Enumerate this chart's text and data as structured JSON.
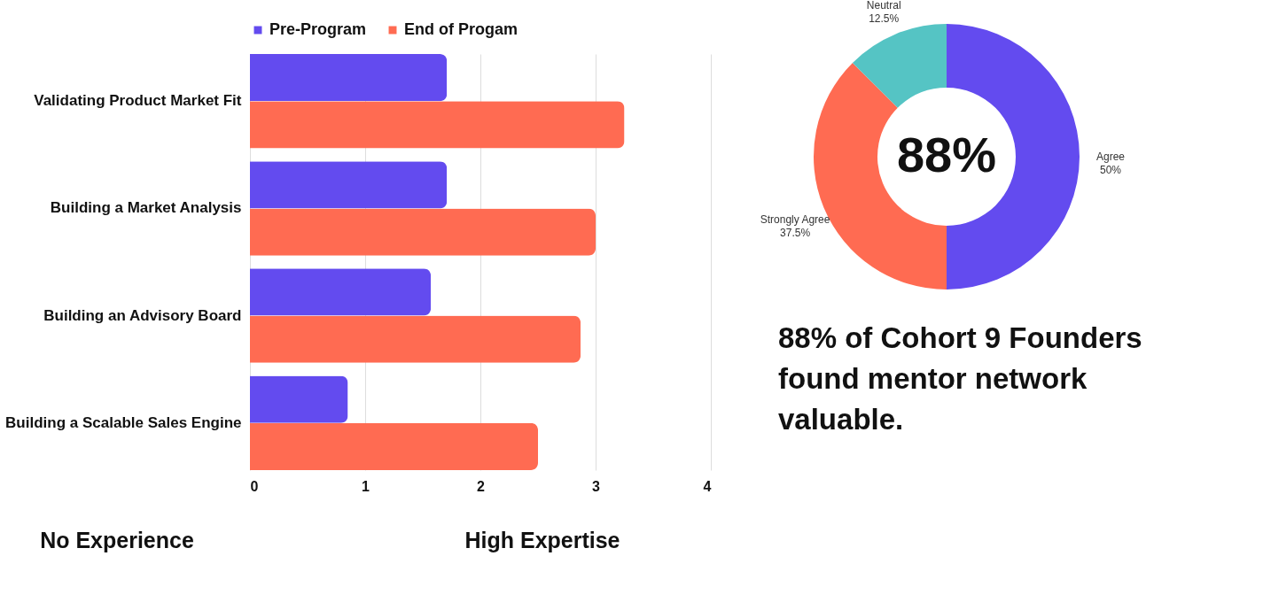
{
  "chart_data": [
    {
      "type": "bar",
      "orientation": "horizontal",
      "categories": [
        "Validating Product Market Fit",
        "Building a Market Analysis",
        "Building an Advisory Board",
        "Building a Scalable Sales Engine"
      ],
      "series": [
        {
          "name": "Pre-Program",
          "color": "#634bef",
          "values": [
            1.71,
            1.71,
            1.57,
            0.85
          ]
        },
        {
          "name": "End of Progam",
          "color": "#ff6b52",
          "values": [
            3.25,
            3.0,
            2.87,
            2.5
          ]
        }
      ],
      "xlim": [
        0,
        4
      ],
      "xticks": [
        0,
        1,
        2,
        3,
        4
      ],
      "grid": "x",
      "legend": "top",
      "annotations": [
        "No Experience",
        "High Expertise"
      ]
    },
    {
      "type": "donut",
      "categories": [
        "Agree",
        "Strongly Agree",
        "Neutral"
      ],
      "values": [
        50,
        37.5,
        12.5
      ],
      "colors": [
        "#634bef",
        "#ff6b52",
        "#55c4c4"
      ],
      "value_labels": [
        "50%",
        "37.5%",
        "12.5%"
      ],
      "legend": false,
      "annotations": [
        "88%",
        "88% of Cohort 9 Founders found mentor network  valuable."
      ]
    }
  ]
}
